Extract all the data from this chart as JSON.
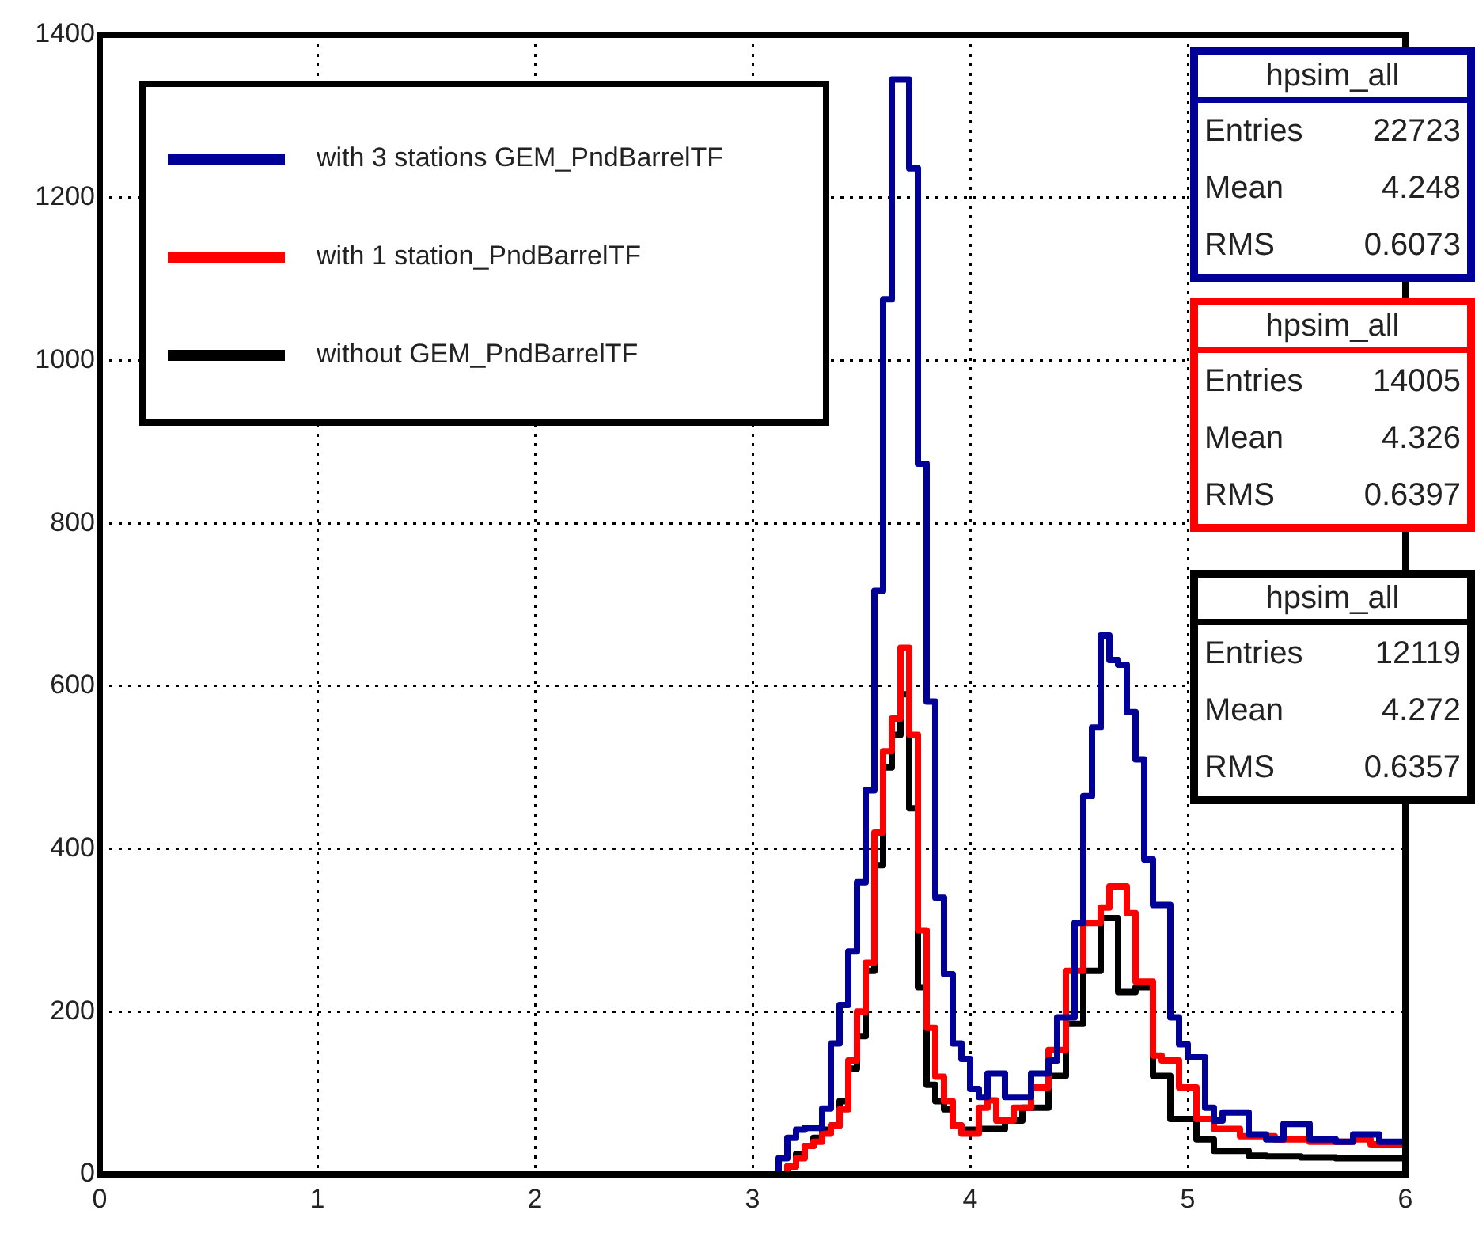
{
  "chart_data": {
    "type": "histogram",
    "bins": [
      3.12,
      3.16,
      3.2,
      3.24,
      3.28,
      3.32,
      3.36,
      3.4,
      3.44,
      3.48,
      3.52,
      3.56,
      3.6,
      3.64,
      3.68,
      3.72,
      3.76,
      3.8,
      3.84,
      3.88,
      3.92,
      3.96,
      4.0,
      4.04,
      4.08,
      4.12,
      4.16,
      4.2,
      4.24,
      4.28,
      4.32,
      4.36,
      4.4,
      4.44,
      4.48,
      4.52,
      4.56,
      4.6,
      4.64,
      4.68,
      4.72,
      4.76,
      4.8,
      4.84,
      4.88,
      4.92,
      4.96,
      5.0,
      5.04,
      5.08,
      5.12,
      5.16,
      5.2,
      5.24,
      5.28,
      5.32,
      5.36,
      5.4,
      5.44,
      5.48,
      5.52,
      5.56,
      5.6,
      5.64,
      5.68,
      5.72,
      5.76,
      5.8,
      5.84,
      5.88,
      5.92,
      5.96,
      6.0
    ],
    "series": [
      {
        "name": "with 3 stations GEM_PndBarrelTF",
        "color": "#000099",
        "values": [
          20,
          45,
          55,
          57,
          57,
          81,
          161,
          208,
          274,
          359,
          472,
          717,
          1075,
          1345,
          1345,
          1236,
          873,
          581,
          340,
          246,
          161,
          142,
          105,
          95,
          124,
          124,
          95,
          95,
          95,
          124,
          124,
          140,
          193,
          193,
          309,
          465,
          549,
          662,
          632,
          626,
          568,
          510,
          387,
          331,
          331,
          193,
          160,
          144,
          144,
          82,
          66,
          76,
          76,
          76,
          49,
          49,
          43,
          43,
          62,
          62,
          62,
          43,
          43,
          43,
          40,
          40,
          49,
          49,
          49,
          40,
          40,
          40
        ]
      },
      {
        "name": "with 1 station_PndBarrelTF",
        "color": "#ff0000",
        "values": [
          0,
          10,
          20,
          35,
          40,
          50,
          60,
          80,
          140,
          200,
          260,
          420,
          520,
          560,
          647,
          540,
          300,
          180,
          120,
          90,
          60,
          50,
          50,
          82,
          91,
          66,
          66,
          82,
          82,
          107,
          107,
          153,
          153,
          250,
          250,
          309,
          309,
          328,
          354,
          354,
          321,
          237,
          237,
          146,
          140,
          140,
          107,
          107,
          68,
          68,
          56,
          56,
          56,
          47,
          47,
          47,
          47,
          43,
          43,
          43,
          43,
          40,
          40,
          40,
          40,
          40,
          43,
          43,
          37,
          37,
          37,
          37
        ]
      },
      {
        "name": "without GEM_PndBarrelTF",
        "color": "#000000",
        "values": [
          0,
          10,
          25,
          35,
          45,
          55,
          60,
          90,
          130,
          170,
          250,
          380,
          500,
          540,
          590,
          450,
          230,
          110,
          90,
          80,
          60,
          55,
          55,
          56,
          56,
          56,
          66,
          66,
          82,
          82,
          82,
          121,
          121,
          185,
          185,
          250,
          250,
          315,
          315,
          224,
          224,
          230,
          230,
          121,
          121,
          68,
          68,
          68,
          43,
          43,
          29,
          29,
          29,
          29,
          23,
          23,
          22,
          22,
          22,
          22,
          21,
          21,
          21,
          21,
          20,
          20,
          20,
          20,
          20,
          20,
          20,
          20
        ]
      }
    ],
    "xlim": [
      0,
      6
    ],
    "xticks": [
      0,
      1,
      2,
      3,
      4,
      5,
      6
    ],
    "ylim": [
      0,
      1400
    ],
    "yticks": [
      0,
      200,
      400,
      600,
      800,
      1000,
      1200,
      1400
    ],
    "grid": true,
    "legend": "top left",
    "annotations": [
      "hpsim_all",
      "Entries 22723",
      "Mean 4.248",
      "RMS 0.6073",
      "hpsim_all",
      "Entries 14005",
      "Mean 4.326",
      "RMS 0.6397",
      "hpsim_all",
      "Entries 12119",
      "Mean 4.272",
      "RMS 0.6357"
    ]
  }
}
